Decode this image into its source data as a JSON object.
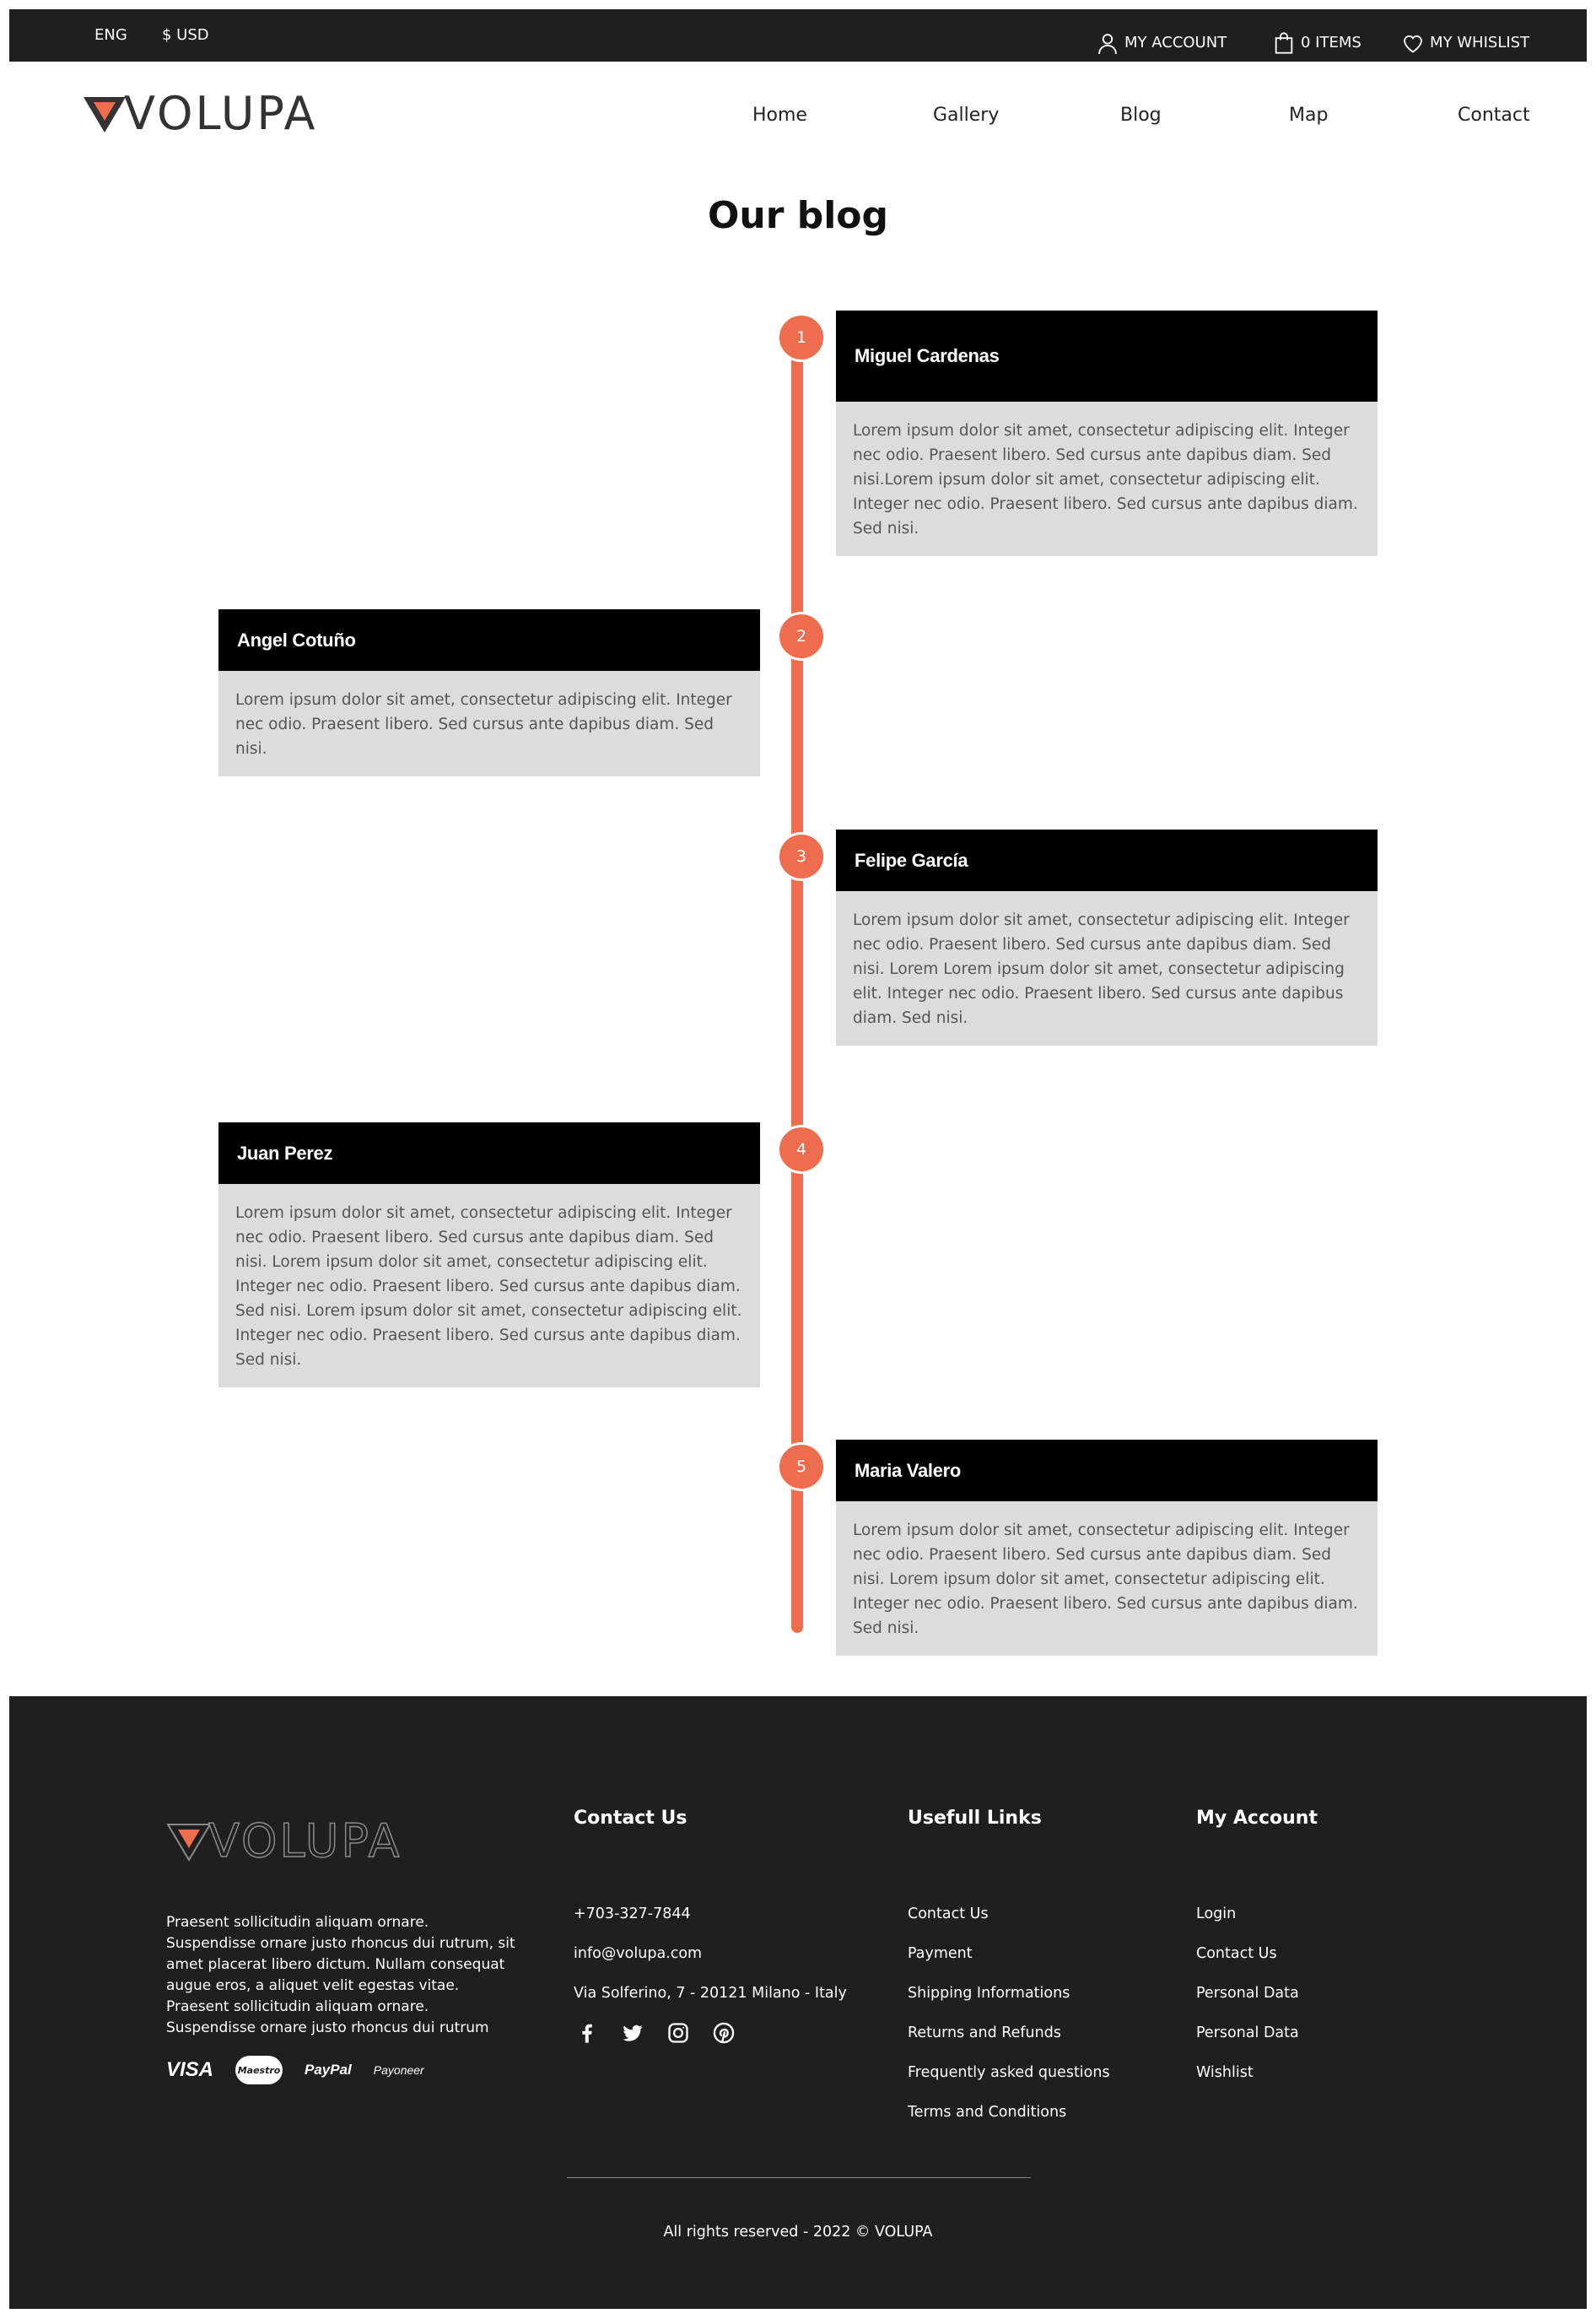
{
  "topbar": {
    "language": "ENG",
    "currency": "$ USD",
    "account": "MY ACCOUNT",
    "cart": "0 ITEMS",
    "wishlist": "MY WHISLIST"
  },
  "header": {
    "logo_text": "VOLUPA",
    "nav": [
      "Home",
      "Gallery",
      "Blog",
      "Map",
      "Contact"
    ]
  },
  "page_title": "Our blog",
  "timeline": [
    {
      "number": "1",
      "author": "Miguel Cardenas",
      "text": "Lorem ipsum dolor sit amet, consectetur adipiscing elit. Integer nec odio. Praesent libero. Sed cursus ante dapibus diam. Sed nisi.Lorem ipsum dolor sit amet, consectetur adipiscing elit. Integer nec odio. Praesent libero. Sed cursus ante dapibus diam. Sed nisi."
    },
    {
      "number": "2",
      "author": "Angel Cotuño",
      "text": "Lorem ipsum dolor sit amet, consectetur adipiscing elit. Integer nec odio. Praesent libero. Sed cursus ante dapibus diam. Sed nisi."
    },
    {
      "number": "3",
      "author": "Felipe García",
      "text": "Lorem ipsum dolor sit amet, consectetur adipiscing elit. Integer nec odio. Praesent libero. Sed cursus ante dapibus diam. Sed nisi. Lorem Lorem ipsum dolor sit amet, consectetur adipiscing elit. Integer nec odio. Praesent libero. Sed cursus ante dapibus diam. Sed nisi."
    },
    {
      "number": "4",
      "author": "Juan Perez",
      "text": "Lorem ipsum dolor sit amet, consectetur adipiscing elit. Integer nec odio. Praesent libero. Sed cursus ante dapibus diam. Sed nisi. Lorem ipsum dolor sit amet, consectetur adipiscing elit. Integer nec odio. Praesent libero. Sed cursus ante dapibus diam. Sed nisi. Lorem ipsum dolor sit amet, consectetur adipiscing elit. Integer nec odio. Praesent libero. Sed cursus ante dapibus diam. Sed nisi."
    },
    {
      "number": "5",
      "author": "Maria Valero",
      "text": "Lorem ipsum dolor sit amet, consectetur adipiscing elit. Integer nec odio. Praesent libero. Sed cursus ante dapibus diam. Sed nisi. Lorem ipsum dolor sit amet, consectetur adipiscing elit. Integer nec odio. Praesent libero. Sed cursus ante dapibus diam. Sed nisi."
    }
  ],
  "footer": {
    "logo_text": "VOLUPA",
    "about": "Praesent sollicitudin aliquam ornare. Suspendisse ornare justo rhoncus dui rutrum, sit amet placerat libero dictum. Nullam consequat augue eros, a aliquet velit egestas vitae. Praesent sollicitudin aliquam ornare. Suspendisse ornare justo rhoncus dui rutrum",
    "payments": {
      "visa": "VISA",
      "maestro": "Maestro",
      "paypal": "PayPal",
      "payoneer": "Payoneer"
    },
    "contact": {
      "title": "Contact Us",
      "phone": "+703-327-7844",
      "email": "info@volupa.com",
      "address": "Via Solferino, 7 - 20121 Milano - Italy"
    },
    "links": {
      "title": "Usefull Links",
      "items": [
        "Contact Us",
        "Payment",
        "Shipping Informations",
        "Returns and Refunds",
        "Frequently asked questions",
        "Terms and Conditions"
      ]
    },
    "account": {
      "title": "My Account",
      "items": [
        "Login",
        "Contact Us",
        "Personal Data",
        "Personal Data",
        "Wishlist"
      ]
    },
    "copyright": "All rights reserved - 2022 © VOLUPA"
  },
  "colors": {
    "accent": "#ef6d4f",
    "dark": "#1f1f1f",
    "card_body": "#dcdcdc"
  },
  "icons": [
    "user-icon",
    "bag-icon",
    "heart-icon",
    "facebook-icon",
    "twitter-icon",
    "instagram-icon",
    "pinterest-icon"
  ]
}
